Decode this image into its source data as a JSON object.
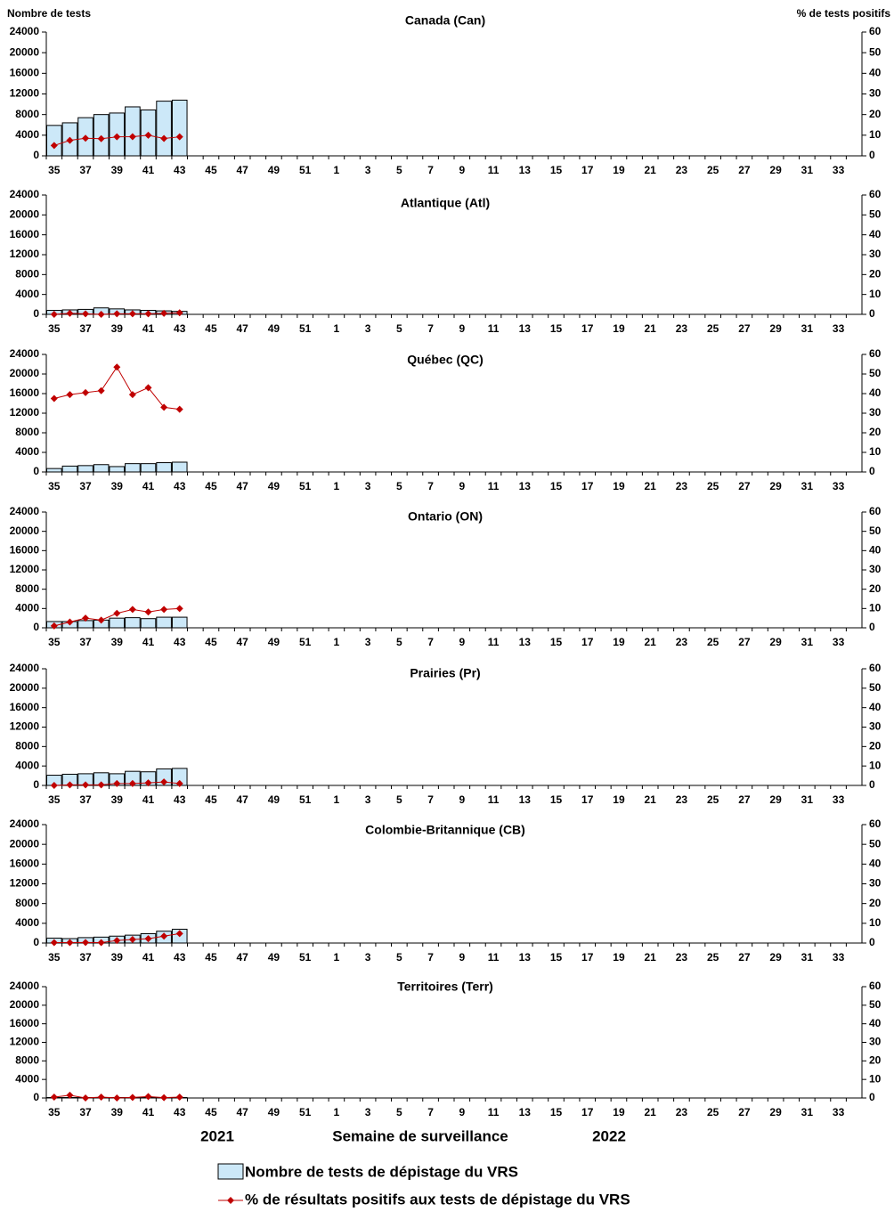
{
  "chart_data": {
    "type": "combo",
    "ylabel": "Nombre de tests",
    "y2label": "% de tests positifs",
    "xlabel": "Semaine de surveillance",
    "year_labels": [
      "2021",
      "2022"
    ],
    "categories": [
      35,
      null,
      37,
      null,
      39,
      null,
      41,
      null,
      43,
      null,
      45,
      null,
      47,
      null,
      49,
      null,
      51,
      null,
      1,
      null,
      3,
      null,
      5,
      null,
      7,
      null,
      9,
      null,
      11,
      null,
      13,
      null,
      15,
      null,
      17,
      null,
      19,
      null,
      21,
      null,
      23,
      null,
      25,
      null,
      27,
      null,
      29,
      null,
      31,
      null,
      33,
      null
    ],
    "ylim": [
      0,
      24000
    ],
    "yticks": [
      0,
      4000,
      8000,
      12000,
      16000,
      20000,
      24000
    ],
    "y2lim": [
      0,
      60
    ],
    "y2ticks": [
      0,
      10,
      20,
      30,
      40,
      50,
      60
    ],
    "legend": [
      {
        "name": "Nombre de tests de dépistage du VRS",
        "color": "#cce8f8"
      },
      {
        "name": "% de résultats positifs aux tests de dépistage du VRS",
        "color": "#c00000",
        "axis": "y2"
      }
    ],
    "panels": [
      {
        "title": "Canada (Can)",
        "series": [
          {
            "values": [
              5900,
              6400,
              7400,
              8000,
              8300,
              9500,
              8900,
              10600,
              10800,
              null,
              null,
              null,
              null,
              null,
              null,
              null,
              null,
              null,
              null,
              null,
              null,
              null,
              null,
              null,
              null,
              null,
              null,
              null,
              null,
              null,
              null,
              null,
              null,
              null,
              null,
              null,
              null,
              null,
              null,
              null,
              null,
              null,
              null,
              null,
              null,
              null,
              null,
              null,
              null,
              null,
              null,
              null
            ]
          },
          {
            "values": [
              5,
              7.5,
              8.5,
              8.3,
              9.2,
              9.3,
              10,
              8.4,
              9.2,
              null,
              null,
              null,
              null,
              null,
              null,
              null,
              null,
              null,
              null,
              null,
              null,
              null,
              null,
              null,
              null,
              null,
              null,
              null,
              null,
              null,
              null,
              null,
              null,
              null,
              null,
              null,
              null,
              null,
              null,
              null,
              null,
              null,
              null,
              null,
              null,
              null,
              null,
              null,
              null,
              null,
              null,
              null
            ]
          }
        ]
      },
      {
        "title": "Atlantique (Atl)",
        "series": [
          {
            "values": [
              800,
              900,
              1000,
              1300,
              1100,
              900,
              800,
              700,
              600,
              null,
              null,
              null,
              null,
              null,
              null,
              null,
              null,
              null,
              null,
              null,
              null,
              null,
              null,
              null,
              null,
              null,
              null,
              null,
              null,
              null,
              null,
              null,
              null,
              null,
              null,
              null,
              null,
              null,
              null,
              null,
              null,
              null,
              null,
              null,
              null,
              null,
              null,
              null,
              null,
              null,
              null,
              null
            ]
          },
          {
            "values": [
              0,
              0.5,
              0.3,
              0,
              0.3,
              0.3,
              0.3,
              0.5,
              0.8,
              null,
              null,
              null,
              null,
              null,
              null,
              null,
              null,
              null,
              null,
              null,
              null,
              null,
              null,
              null,
              null,
              null,
              null,
              null,
              null,
              null,
              null,
              null,
              null,
              null,
              null,
              null,
              null,
              null,
              null,
              null,
              null,
              null,
              null,
              null,
              null,
              null,
              null,
              null,
              null,
              null,
              null,
              null
            ]
          }
        ]
      },
      {
        "title": "Québec (QC)",
        "series": [
          {
            "values": [
              700,
              1200,
              1300,
              1500,
              1100,
              1700,
              1700,
              1900,
              2000,
              null,
              null,
              null,
              null,
              null,
              null,
              null,
              null,
              null,
              null,
              null,
              null,
              null,
              null,
              null,
              null,
              null,
              null,
              null,
              null,
              null,
              null,
              null,
              null,
              null,
              null,
              null,
              null,
              null,
              null,
              null,
              null,
              null,
              null,
              null,
              null,
              null,
              null,
              null,
              null,
              null,
              null,
              null
            ]
          },
          {
            "values": [
              37.5,
              39.5,
              40.5,
              41.5,
              53.5,
              39.5,
              43,
              33,
              32,
              null,
              null,
              null,
              null,
              null,
              null,
              null,
              null,
              null,
              null,
              null,
              null,
              null,
              null,
              null,
              null,
              null,
              null,
              null,
              null,
              null,
              null,
              null,
              null,
              null,
              null,
              null,
              null,
              null,
              null,
              null,
              null,
              null,
              null,
              null,
              null,
              null,
              null,
              null,
              null,
              null,
              null,
              null
            ]
          }
        ]
      },
      {
        "title": "Ontario (ON)",
        "series": [
          {
            "values": [
              1300,
              1300,
              1500,
              1600,
              2000,
              2100,
              1900,
              2200,
              2200,
              null,
              null,
              null,
              null,
              null,
              null,
              null,
              null,
              null,
              null,
              null,
              null,
              null,
              null,
              null,
              null,
              null,
              null,
              null,
              null,
              null,
              null,
              null,
              null,
              null,
              null,
              null,
              null,
              null,
              null,
              null,
              null,
              null,
              null,
              null,
              null,
              null,
              null,
              null,
              null,
              null,
              null,
              null
            ]
          },
          {
            "values": [
              1,
              3,
              5,
              4,
              7.5,
              9.5,
              8.2,
              9.5,
              10,
              null,
              null,
              null,
              null,
              null,
              null,
              null,
              null,
              null,
              null,
              null,
              null,
              null,
              null,
              null,
              null,
              null,
              null,
              null,
              null,
              null,
              null,
              null,
              null,
              null,
              null,
              null,
              null,
              null,
              null,
              null,
              null,
              null,
              null,
              null,
              null,
              null,
              null,
              null,
              null,
              null,
              null,
              null
            ]
          }
        ]
      },
      {
        "title": "Prairies (Pr)",
        "series": [
          {
            "values": [
              2100,
              2300,
              2400,
              2600,
              2400,
              2900,
              2800,
              3400,
              3500,
              null,
              null,
              null,
              null,
              null,
              null,
              null,
              null,
              null,
              null,
              null,
              null,
              null,
              null,
              null,
              null,
              null,
              null,
              null,
              null,
              null,
              null,
              null,
              null,
              null,
              null,
              null,
              null,
              null,
              null,
              null,
              null,
              null,
              null,
              null,
              null,
              null,
              null,
              null,
              null,
              null,
              null,
              null
            ]
          },
          {
            "values": [
              0,
              0.3,
              0.3,
              0.3,
              1,
              1,
              1.3,
              1.8,
              1,
              null,
              null,
              null,
              null,
              null,
              null,
              null,
              null,
              null,
              null,
              null,
              null,
              null,
              null,
              null,
              null,
              null,
              null,
              null,
              null,
              null,
              null,
              null,
              null,
              null,
              null,
              null,
              null,
              null,
              null,
              null,
              null,
              null,
              null,
              null,
              null,
              null,
              null,
              null,
              null,
              null,
              null,
              null
            ]
          }
        ]
      },
      {
        "title": "Colombie-Britannique (CB)",
        "series": [
          {
            "values": [
              1000,
              900,
              1100,
              1200,
              1400,
              1600,
              1900,
              2400,
              2800,
              null,
              null,
              null,
              null,
              null,
              null,
              null,
              null,
              null,
              null,
              null,
              null,
              null,
              null,
              null,
              null,
              null,
              null,
              null,
              null,
              null,
              null,
              null,
              null,
              null,
              null,
              null,
              null,
              null,
              null,
              null,
              null,
              null,
              null,
              null,
              null,
              null,
              null,
              null,
              null,
              null,
              null,
              null
            ]
          },
          {
            "values": [
              0.2,
              0.2,
              0.3,
              0.2,
              1.3,
              1.8,
              2.2,
              3.5,
              4.8,
              null,
              null,
              null,
              null,
              null,
              null,
              null,
              null,
              null,
              null,
              null,
              null,
              null,
              null,
              null,
              null,
              null,
              null,
              null,
              null,
              null,
              null,
              null,
              null,
              null,
              null,
              null,
              null,
              null,
              null,
              null,
              null,
              null,
              null,
              null,
              null,
              null,
              null,
              null,
              null,
              null,
              null,
              null
            ]
          }
        ]
      },
      {
        "title": "Territoires (Terr)",
        "series": [
          {
            "values": [
              100,
              100,
              100,
              100,
              100,
              100,
              100,
              100,
              100,
              null,
              null,
              null,
              null,
              null,
              null,
              null,
              null,
              null,
              null,
              null,
              null,
              null,
              null,
              null,
              null,
              null,
              null,
              null,
              null,
              null,
              null,
              null,
              null,
              null,
              null,
              null,
              null,
              null,
              null,
              null,
              null,
              null,
              null,
              null,
              null,
              null,
              null,
              null,
              null,
              null,
              null,
              null
            ]
          },
          {
            "values": [
              0.5,
              1.5,
              0,
              0.5,
              0,
              0.3,
              0.8,
              0.2,
              0.5,
              null,
              null,
              null,
              null,
              null,
              null,
              null,
              null,
              null,
              null,
              null,
              null,
              null,
              null,
              null,
              null,
              null,
              null,
              null,
              null,
              null,
              null,
              null,
              null,
              null,
              null,
              null,
              null,
              null,
              null,
              null,
              null,
              null,
              null,
              null,
              null,
              null,
              null,
              null,
              null,
              null,
              null,
              null
            ]
          }
        ]
      }
    ]
  }
}
